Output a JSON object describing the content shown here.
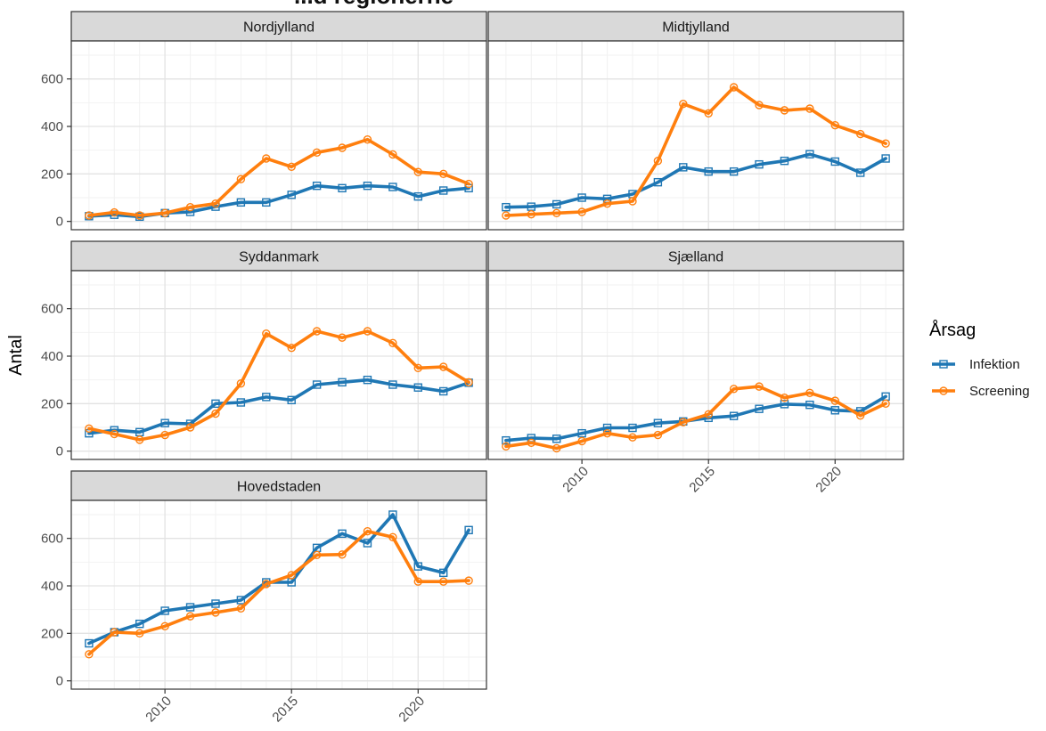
{
  "cropped_title": "...d regionerne",
  "chart_data": {
    "type": "line",
    "ylabel": "Antal",
    "legend": {
      "title": "Årsag",
      "position": "right"
    },
    "x_ticks": [
      2010,
      2015,
      2020
    ],
    "y_ticks": [
      0,
      200,
      400,
      600
    ],
    "xlim": [
      2006.3,
      2022.7
    ],
    "ylim": [
      -35,
      760
    ],
    "series_names": [
      "Infektion",
      "Screening"
    ],
    "colors": {
      "Infektion": "#1f77b4",
      "Screening": "#ff7f0e"
    },
    "markers": {
      "Infektion": "square",
      "Screening": "circle"
    },
    "years": [
      2007,
      2008,
      2009,
      2010,
      2011,
      2012,
      2013,
      2014,
      2015,
      2016,
      2017,
      2018,
      2019,
      2020,
      2021,
      2022
    ],
    "panels": [
      {
        "name": "Nordjylland",
        "series": [
          {
            "name": "Infektion",
            "values": [
              22,
              28,
              20,
              35,
              40,
              62,
              80,
              80,
              112,
              150,
              140,
              150,
              145,
              105,
              130,
              140
            ]
          },
          {
            "name": "Screening",
            "values": [
              25,
              38,
              25,
              35,
              60,
              75,
              178,
              265,
              230,
              290,
              310,
              345,
              282,
              208,
              200,
              158
            ]
          }
        ]
      },
      {
        "name": "Midtjylland",
        "series": [
          {
            "name": "Infektion",
            "values": [
              60,
              62,
              72,
              100,
              95,
              115,
              165,
              228,
              210,
              210,
              240,
              255,
              283,
              252,
              205,
              265
            ]
          },
          {
            "name": "Screening",
            "values": [
              25,
              30,
              35,
              40,
              75,
              85,
              255,
              495,
              455,
              565,
              490,
              468,
              475,
              405,
              368,
              328
            ]
          }
        ]
      },
      {
        "name": "Syddanmark",
        "series": [
          {
            "name": "Infektion",
            "values": [
              75,
              88,
              80,
              118,
              115,
              200,
              205,
              228,
              215,
              280,
              290,
              300,
              280,
              268,
              252,
              288
            ]
          },
          {
            "name": "Screening",
            "values": [
              95,
              72,
              48,
              68,
              100,
              158,
              285,
              495,
              435,
              505,
              478,
              505,
              455,
              350,
              355,
              290
            ]
          }
        ]
      },
      {
        "name": "Sjælland",
        "series": [
          {
            "name": "Infektion",
            "values": [
              45,
              55,
              52,
              75,
              98,
              98,
              118,
              125,
              140,
              148,
              178,
              198,
              195,
              172,
              168,
              230
            ]
          },
          {
            "name": "Screening",
            "values": [
              20,
              35,
              12,
              42,
              75,
              58,
              68,
              122,
              155,
              262,
              272,
              225,
              245,
              212,
              150,
              200
            ]
          }
        ]
      },
      {
        "name": "Hovedstaden",
        "series": [
          {
            "name": "Infektion",
            "values": [
              158,
              205,
              240,
              295,
              310,
              325,
              340,
              415,
              415,
              560,
              620,
              580,
              700,
              482,
              455,
              635
            ]
          },
          {
            "name": "Screening",
            "values": [
              112,
              205,
              200,
              230,
              272,
              288,
              305,
              408,
              445,
              530,
              532,
              630,
              605,
              418,
              418,
              422
            ]
          }
        ]
      }
    ]
  }
}
